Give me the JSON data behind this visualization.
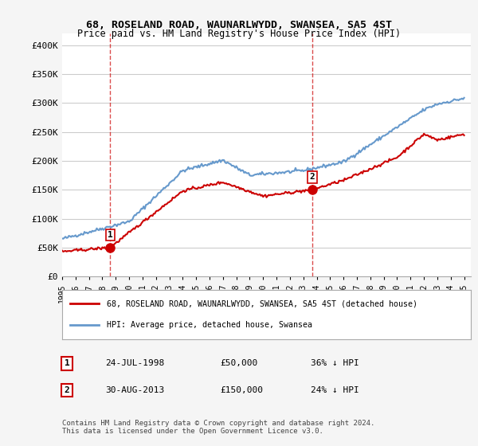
{
  "title": "68, ROSELAND ROAD, WAUNARLWYDD, SWANSEA, SA5 4ST",
  "subtitle": "Price paid vs. HM Land Registry's House Price Index (HPI)",
  "sale1_date": "24-JUL-1998",
  "sale1_price": 50000,
  "sale1_label": "1",
  "sale1_pct": "36% ↓ HPI",
  "sale2_date": "30-AUG-2013",
  "sale2_price": 150000,
  "sale2_label": "2",
  "sale2_pct": "24% ↓ HPI",
  "legend_line1": "68, ROSELAND ROAD, WAUNARLWYDD, SWANSEA, SA5 4ST (detached house)",
  "legend_line2": "HPI: Average price, detached house, Swansea",
  "footer": "Contains HM Land Registry data © Crown copyright and database right 2024.\nThis data is licensed under the Open Government Licence v3.0.",
  "hpi_color": "#6699cc",
  "price_color": "#cc0000",
  "marker_color": "#cc0000",
  "dashed_color": "#cc0000",
  "background_color": "#f5f5f5",
  "plot_bg_color": "#ffffff",
  "ylim": [
    0,
    420000
  ],
  "yticks": [
    0,
    50000,
    100000,
    150000,
    200000,
    250000,
    300000,
    350000,
    400000
  ],
  "xmin": 1995.0,
  "xmax": 2025.5
}
